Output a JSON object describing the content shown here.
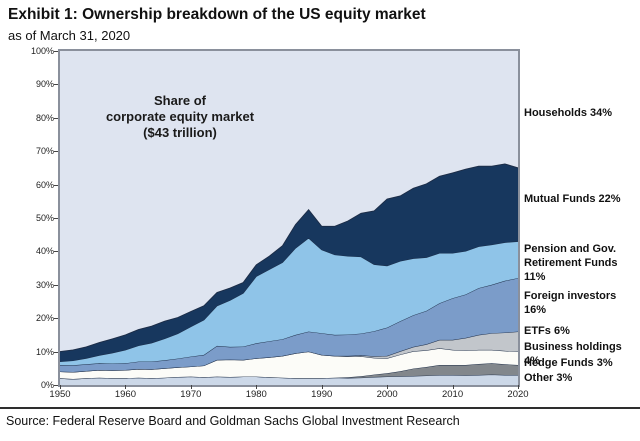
{
  "header": {
    "title": "Exhibit 1: Ownership breakdown of the US equity market",
    "subtitle": "as of March 31, 2020"
  },
  "annotation": "Share of\ncorporate equity market\n($43 trillion)",
  "source": "Source: Federal Reserve Board and Goldman Sachs Global Investment Research",
  "legend": [
    {
      "name": "households",
      "text": "Households 34%"
    },
    {
      "name": "mutual-funds",
      "text": "Mutual Funds 22%"
    },
    {
      "name": "pension",
      "text": "Pension and Gov.\nRetirement Funds 11%"
    },
    {
      "name": "foreign-investors",
      "text": "Foreign investors 16%"
    },
    {
      "name": "etfs",
      "text": "ETFs 6%"
    },
    {
      "name": "business-holdings",
      "text": "Business holdings 4%"
    },
    {
      "name": "hedge-funds",
      "text": "Hedge Funds 3%"
    },
    {
      "name": "other",
      "text": "Other 3%"
    }
  ],
  "chart_data": {
    "type": "area",
    "stacked": true,
    "title": "Share of corporate equity market ($43 trillion)",
    "xlabel": "",
    "ylabel": "",
    "xlim": [
      1950,
      2020
    ],
    "ylim": [
      0,
      100
    ],
    "grid": false,
    "legend_position": "right-outside",
    "yticks_top_down": [
      "100%",
      "90%",
      "80%",
      "70%",
      "60%",
      "50%",
      "40%",
      "30%",
      "20%",
      "10%",
      "0%"
    ],
    "xticks": [
      1950,
      1960,
      1970,
      1980,
      1990,
      2000,
      2010,
      2020
    ],
    "x": [
      1950,
      1952,
      1954,
      1956,
      1958,
      1960,
      1962,
      1964,
      1966,
      1968,
      1970,
      1972,
      1974,
      1976,
      1978,
      1980,
      1982,
      1984,
      1986,
      1988,
      1990,
      1992,
      1994,
      1996,
      1998,
      2000,
      2002,
      2004,
      2006,
      2008,
      2010,
      2012,
      2014,
      2016,
      2018,
      2020
    ],
    "background_series": {
      "name": "Households",
      "value_2020_pct": 34,
      "color": "#dee4f0"
    },
    "series": [
      {
        "name": "Other",
        "value_2020_pct": 3,
        "color": "#ccd8e8",
        "values": [
          2.0,
          1.8,
          2.0,
          2.2,
          2.0,
          2.0,
          2.2,
          2.0,
          2.2,
          2.4,
          2.5,
          2.3,
          2.5,
          2.4,
          2.5,
          2.5,
          2.3,
          2.2,
          2.0,
          2.0,
          2.0,
          2.2,
          2.1,
          2.2,
          2.4,
          2.5,
          2.6,
          2.7,
          2.8,
          3.0,
          3.0,
          2.9,
          3.0,
          3.1,
          3.0,
          3.0
        ]
      },
      {
        "name": "Hedge Funds",
        "value_2020_pct": 3,
        "color": "#82878c",
        "values": [
          0,
          0,
          0,
          0,
          0,
          0,
          0,
          0,
          0,
          0,
          0,
          0,
          0,
          0,
          0,
          0,
          0,
          0,
          0,
          0,
          0,
          0,
          0.2,
          0.4,
          0.7,
          1.0,
          1.5,
          2.2,
          2.6,
          3.0,
          3.0,
          3.1,
          3.3,
          3.4,
          3.2,
          3.0
        ]
      },
      {
        "name": "Business holdings",
        "value_2020_pct": 4,
        "color": "#fcfcf8",
        "values": [
          2.0,
          2.1,
          2.2,
          2.3,
          2.4,
          2.5,
          2.6,
          2.7,
          2.8,
          2.9,
          3.0,
          3.5,
          5.0,
          5.2,
          5.0,
          5.5,
          6.0,
          6.5,
          7.5,
          8.0,
          7.0,
          6.5,
          6.2,
          6.0,
          5.0,
          4.5,
          5.0,
          5.2,
          5.0,
          5.0,
          4.5,
          4.3,
          4.2,
          4.0,
          4.0,
          4.0
        ]
      },
      {
        "name": "ETFs",
        "value_2020_pct": 6,
        "color": "#c2c6cb",
        "values": [
          0,
          0,
          0,
          0,
          0,
          0,
          0,
          0,
          0,
          0,
          0,
          0,
          0,
          0,
          0,
          0,
          0,
          0,
          0,
          0,
          0,
          0,
          0.2,
          0.3,
          0.5,
          0.7,
          1.0,
          1.3,
          1.8,
          2.5,
          3.0,
          3.8,
          4.5,
          5.0,
          5.5,
          6.0
        ]
      },
      {
        "name": "Foreign investors",
        "value_2020_pct": 16,
        "color": "#7b9cc9",
        "values": [
          2.0,
          2.0,
          2.0,
          2.0,
          2.0,
          2.0,
          2.2,
          2.3,
          2.4,
          2.6,
          3.0,
          3.2,
          4.2,
          3.8,
          4.0,
          4.5,
          4.8,
          5.0,
          5.5,
          6.0,
          6.5,
          6.3,
          6.4,
          6.5,
          7.5,
          8.5,
          9.0,
          9.5,
          10.0,
          11.0,
          12.5,
          13.0,
          14.0,
          14.5,
          15.5,
          16.0
        ]
      },
      {
        "name": "Pension and Gov. Retirement Funds",
        "value_2020_pct": 11,
        "color": "#8fc4e8",
        "values": [
          1.0,
          1.4,
          1.8,
          2.4,
          3.2,
          4.0,
          4.8,
          5.6,
          6.5,
          7.5,
          9.0,
          10.5,
          12.0,
          14.0,
          16.0,
          20.0,
          21.5,
          23.0,
          26.0,
          28.0,
          25.0,
          24.0,
          23.5,
          23.0,
          20.0,
          18.5,
          18.0,
          17.0,
          16.0,
          15.0,
          13.5,
          13.0,
          12.5,
          12.0,
          11.5,
          11.0
        ]
      },
      {
        "name": "Mutual Funds",
        "value_2020_pct": 22,
        "color": "#17375e",
        "values": [
          3.0,
          3.2,
          3.4,
          3.8,
          4.2,
          4.5,
          4.8,
          5.0,
          5.2,
          4.8,
          4.5,
          4.2,
          4.0,
          3.6,
          3.2,
          3.5,
          4.0,
          5.0,
          7.0,
          8.5,
          7.0,
          8.5,
          10.5,
          13.0,
          16.0,
          20.0,
          19.5,
          21.0,
          22.0,
          23.0,
          24.0,
          24.5,
          24.0,
          23.5,
          23.5,
          22.0
        ]
      }
    ],
    "boundary_line_color": "#1c2c46"
  }
}
